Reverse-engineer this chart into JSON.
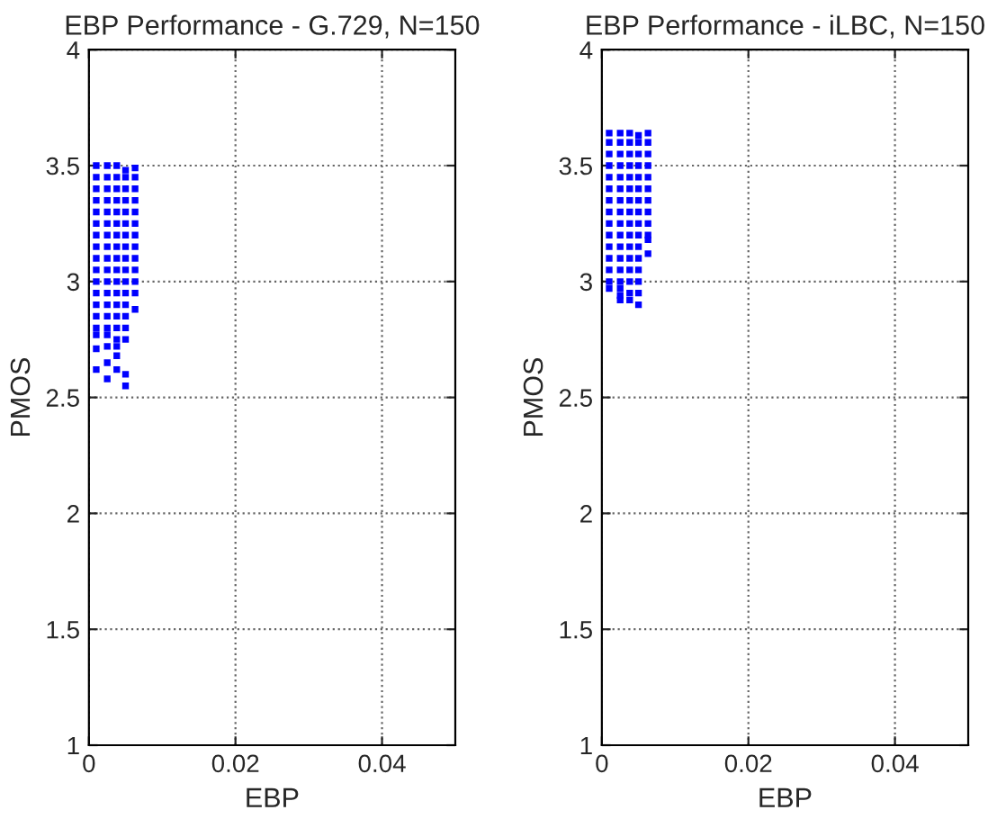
{
  "chart_data": [
    {
      "type": "scatter",
      "title": "EBP Performance - G.729, N=150",
      "xlabel": "EBP",
      "ylabel": "PMOS",
      "xlim": [
        0,
        0.05
      ],
      "xticks": [
        0,
        0.02,
        0.04
      ],
      "ylim": [
        1,
        4
      ],
      "yticks": [
        1,
        1.5,
        2,
        2.5,
        3,
        3.5,
        4
      ],
      "grid": true,
      "marker": "square",
      "legend": false,
      "series": [
        {
          "color": "#0000ff",
          "x": [
            0.001,
            0.001,
            0.001,
            0.001,
            0.001,
            0.001,
            0.001,
            0.001,
            0.001,
            0.001,
            0.001,
            0.001,
            0.001,
            0.001,
            0.001,
            0.001,
            0.001,
            0.001
          ],
          "values": [
            3.5,
            3.45,
            3.4,
            3.35,
            3.3,
            3.25,
            3.2,
            3.15,
            3.1,
            3.05,
            3.0,
            2.95,
            2.9,
            2.85,
            2.8,
            2.77,
            2.71,
            2.62
          ]
        },
        {
          "color": "#0000ff",
          "x": [
            0.0025,
            0.0025,
            0.0025,
            0.0025,
            0.0025,
            0.0025,
            0.0025,
            0.0025,
            0.0025,
            0.0025,
            0.0025,
            0.0025,
            0.0025,
            0.0025,
            0.0025,
            0.0025,
            0.0025,
            0.0025,
            0.0025
          ],
          "values": [
            3.5,
            3.45,
            3.4,
            3.35,
            3.3,
            3.25,
            3.2,
            3.15,
            3.1,
            3.05,
            3.0,
            2.95,
            2.9,
            2.85,
            2.8,
            2.77,
            2.72,
            2.65,
            2.58
          ]
        },
        {
          "color": "#0000ff",
          "x": [
            0.0038,
            0.0038,
            0.0038,
            0.0038,
            0.0038,
            0.0038,
            0.0038,
            0.0038,
            0.0038,
            0.0038,
            0.0038,
            0.0038,
            0.0038,
            0.0038,
            0.0038,
            0.0038,
            0.0038,
            0.0038,
            0.0038
          ],
          "values": [
            3.5,
            3.45,
            3.4,
            3.35,
            3.3,
            3.25,
            3.2,
            3.15,
            3.1,
            3.05,
            3.0,
            2.95,
            2.9,
            2.85,
            2.8,
            2.75,
            2.72,
            2.68,
            2.62
          ]
        },
        {
          "color": "#0000ff",
          "x": [
            0.005,
            0.005,
            0.005,
            0.005,
            0.005,
            0.005,
            0.005,
            0.005,
            0.005,
            0.005,
            0.005,
            0.005,
            0.005,
            0.005,
            0.005,
            0.005,
            0.005,
            0.005
          ],
          "values": [
            3.48,
            3.45,
            3.4,
            3.35,
            3.3,
            3.25,
            3.2,
            3.15,
            3.1,
            3.05,
            3.0,
            2.95,
            2.9,
            2.85,
            2.8,
            2.75,
            2.6,
            2.55
          ]
        },
        {
          "color": "#0000ff",
          "x": [
            0.0063,
            0.0063,
            0.0063,
            0.0063,
            0.0063,
            0.0063,
            0.0063,
            0.0063,
            0.0063,
            0.0063,
            0.0063,
            0.0063,
            0.0063
          ],
          "values": [
            3.49,
            3.45,
            3.4,
            3.35,
            3.3,
            3.25,
            3.2,
            3.15,
            3.1,
            3.05,
            3.0,
            2.95,
            2.88
          ]
        }
      ]
    },
    {
      "type": "scatter",
      "title": "EBP Performance - iLBC, N=150",
      "xlabel": "EBP",
      "ylabel": "PMOS",
      "xlim": [
        0,
        0.05
      ],
      "xticks": [
        0,
        0.02,
        0.04
      ],
      "ylim": [
        1,
        4
      ],
      "yticks": [
        1,
        1.5,
        2,
        2.5,
        3,
        3.5,
        4
      ],
      "grid": true,
      "marker": "square",
      "legend": false,
      "series": [
        {
          "color": "#0000ff",
          "x": [
            0.001,
            0.001,
            0.001,
            0.001,
            0.001,
            0.001,
            0.001,
            0.001,
            0.001,
            0.001,
            0.001,
            0.001,
            0.001,
            0.001,
            0.001
          ],
          "values": [
            3.64,
            3.6,
            3.55,
            3.5,
            3.45,
            3.4,
            3.35,
            3.3,
            3.25,
            3.2,
            3.15,
            3.1,
            3.05,
            3.0,
            2.97
          ]
        },
        {
          "color": "#0000ff",
          "x": [
            0.0025,
            0.0025,
            0.0025,
            0.0025,
            0.0025,
            0.0025,
            0.0025,
            0.0025,
            0.0025,
            0.0025,
            0.0025,
            0.0025,
            0.0025,
            0.0025,
            0.0025,
            0.0025,
            0.0025
          ],
          "values": [
            3.64,
            3.6,
            3.55,
            3.5,
            3.45,
            3.4,
            3.35,
            3.3,
            3.25,
            3.2,
            3.15,
            3.1,
            3.05,
            3.0,
            2.97,
            2.94,
            2.92
          ]
        },
        {
          "color": "#0000ff",
          "x": [
            0.0038,
            0.0038,
            0.0038,
            0.0038,
            0.0038,
            0.0038,
            0.0038,
            0.0038,
            0.0038,
            0.0038,
            0.0038,
            0.0038,
            0.0038,
            0.0038,
            0.0038,
            0.0038
          ],
          "values": [
            3.64,
            3.6,
            3.55,
            3.5,
            3.45,
            3.4,
            3.35,
            3.3,
            3.25,
            3.2,
            3.15,
            3.1,
            3.05,
            3.0,
            2.95,
            2.92
          ]
        },
        {
          "color": "#0000ff",
          "x": [
            0.005,
            0.005,
            0.005,
            0.005,
            0.005,
            0.005,
            0.005,
            0.005,
            0.005,
            0.005,
            0.005,
            0.005,
            0.005,
            0.005,
            0.005,
            0.005
          ],
          "values": [
            3.63,
            3.6,
            3.55,
            3.5,
            3.45,
            3.4,
            3.35,
            3.3,
            3.25,
            3.2,
            3.15,
            3.1,
            3.05,
            3.0,
            2.95,
            2.9
          ]
        },
        {
          "color": "#0000ff",
          "x": [
            0.0063,
            0.0063,
            0.0063,
            0.0063,
            0.0063,
            0.0063,
            0.0063,
            0.0063,
            0.0063,
            0.0063,
            0.0063,
            0.0063
          ],
          "values": [
            3.64,
            3.6,
            3.55,
            3.5,
            3.45,
            3.4,
            3.35,
            3.3,
            3.25,
            3.2,
            3.18,
            3.12
          ]
        }
      ]
    }
  ]
}
